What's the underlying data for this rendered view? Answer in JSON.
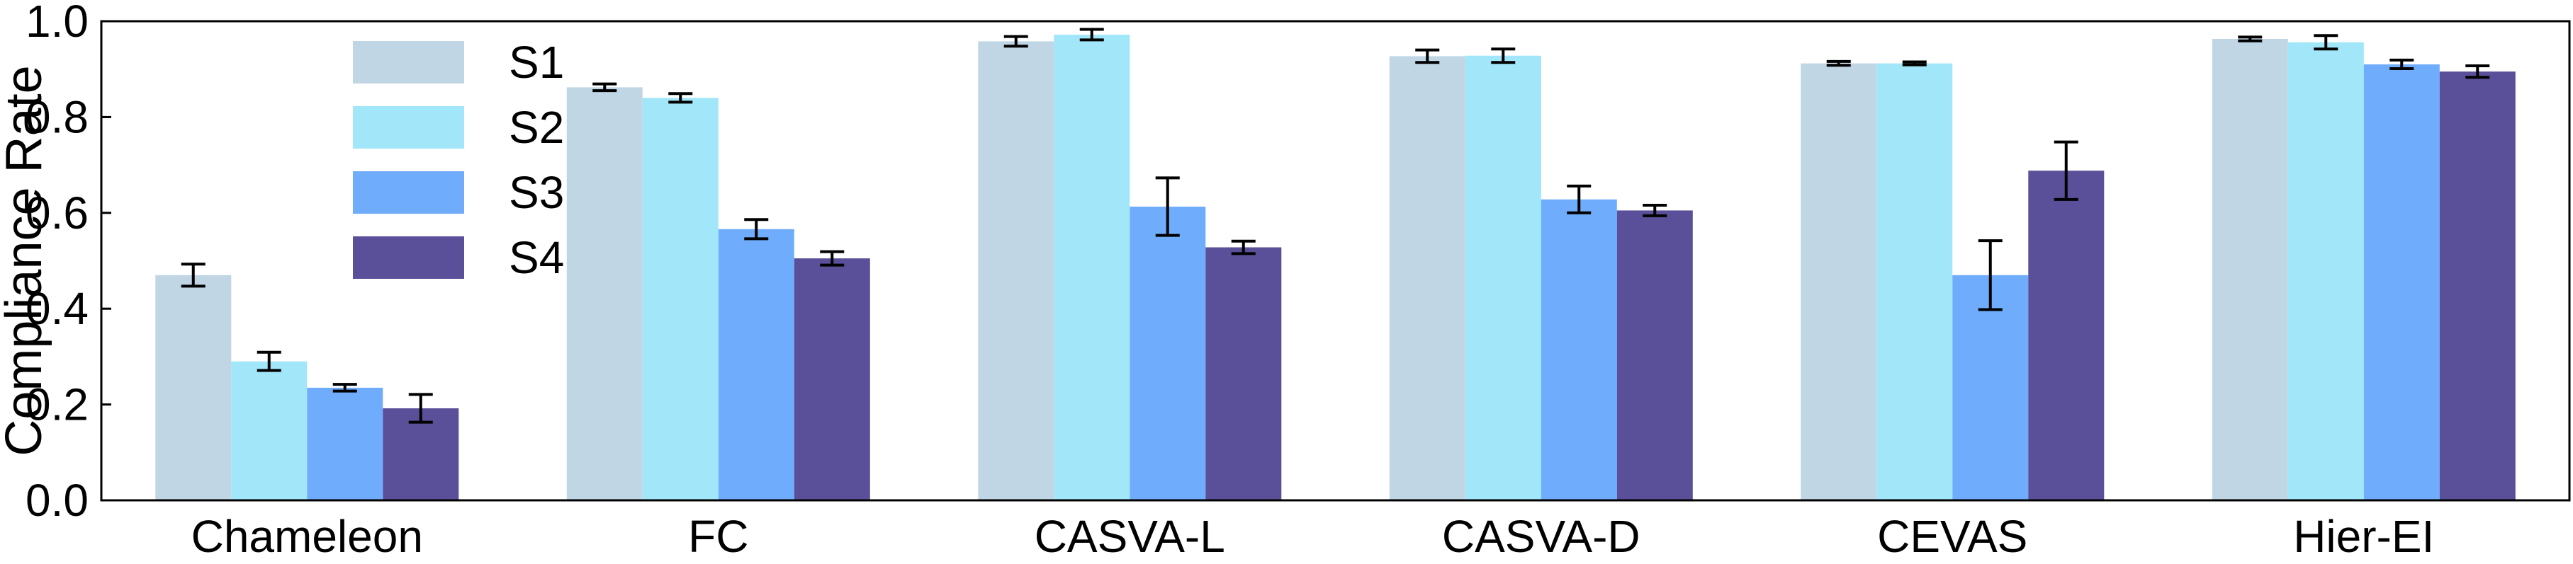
{
  "chart_data": {
    "type": "bar",
    "ylabel": "Compliance Rate",
    "ylim": [
      0.0,
      1.0
    ],
    "yticks": [
      "0.0",
      "0.2",
      "0.4",
      "0.6",
      "0.8",
      "1.0"
    ],
    "categories": [
      "Chameleon",
      "FC",
      "CASVA-L",
      "CASVA-D",
      "CEVAS",
      "Hier-EI"
    ],
    "legend_position": "top-left",
    "grid": false,
    "series": [
      {
        "name": "S1",
        "color": "#c0d6e5",
        "values": [
          0.47,
          0.862,
          0.958,
          0.927,
          0.912,
          0.963
        ],
        "errors": [
          0.023,
          0.007,
          0.01,
          0.013,
          0.004,
          0.004
        ]
      },
      {
        "name": "S2",
        "color": "#a2e6f9",
        "values": [
          0.29,
          0.84,
          0.972,
          0.928,
          0.912,
          0.956
        ],
        "errors": [
          0.019,
          0.009,
          0.011,
          0.014,
          0.003,
          0.014
        ]
      },
      {
        "name": "S3",
        "color": "#6fadfc",
        "values": [
          0.235,
          0.566,
          0.613,
          0.628,
          0.47,
          0.91
        ],
        "errors": [
          0.007,
          0.02,
          0.06,
          0.028,
          0.072,
          0.009
        ]
      },
      {
        "name": "S4",
        "color": "#5a4f99",
        "values": [
          0.192,
          0.505,
          0.528,
          0.605,
          0.688,
          0.895
        ],
        "errors": [
          0.029,
          0.014,
          0.013,
          0.011,
          0.06,
          0.012
        ]
      }
    ]
  }
}
